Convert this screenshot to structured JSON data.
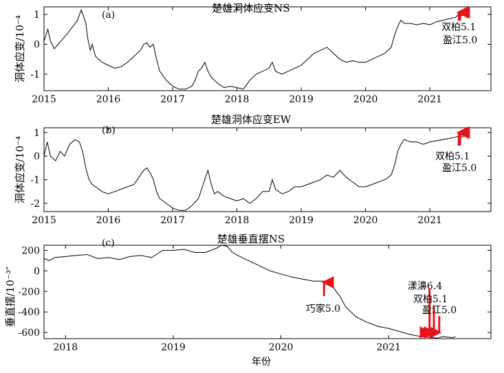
{
  "xlabel_bottom": "年份",
  "colors": {
    "line": "#000000",
    "arrow": "#e8141b"
  },
  "chart_data": [
    {
      "type": "line",
      "panel_letter": "(a)",
      "title": "楚雄洞体应变NS",
      "ylabel": "洞体应变/10⁻⁴",
      "xlim": [
        2015.0,
        2021.95
      ],
      "ylim": [
        -1.55,
        1.25
      ],
      "xticks": [
        2015,
        2016,
        2017,
        2018,
        2019,
        2020,
        2021
      ],
      "yticks": [
        -1,
        0,
        1
      ],
      "grid": false,
      "series": [
        {
          "x": [
            2015.0,
            2015.06,
            2015.1,
            2015.16,
            2015.22,
            2015.3,
            2015.38,
            2015.45,
            2015.52,
            2015.58,
            2015.62,
            2015.65,
            2015.68,
            2015.72,
            2015.75,
            2015.8,
            2015.9,
            2016.0,
            2016.1,
            2016.2,
            2016.3,
            2016.4,
            2016.5,
            2016.55,
            2016.6,
            2016.65,
            2016.7,
            2016.75,
            2016.8,
            2016.9,
            2017.0,
            2017.1,
            2017.2,
            2017.3,
            2017.35,
            2017.4,
            2017.45,
            2017.5,
            2017.55,
            2017.6,
            2017.65,
            2017.7,
            2017.8,
            2017.9,
            2018.0,
            2018.1,
            2018.2,
            2018.3,
            2018.4,
            2018.5,
            2018.55,
            2018.6,
            2018.7,
            2018.8,
            2018.9,
            2019.0,
            2019.1,
            2019.2,
            2019.3,
            2019.4,
            2019.5,
            2019.6,
            2019.7,
            2019.8,
            2019.9,
            2020.0,
            2020.1,
            2020.2,
            2020.3,
            2020.4,
            2020.45,
            2020.5,
            2020.55,
            2020.6,
            2020.7,
            2020.8,
            2020.9,
            2021.0,
            2021.1,
            2021.2,
            2021.3,
            2021.4,
            2021.45,
            2021.5,
            2021.55,
            2021.58
          ],
          "y": [
            0.1,
            0.5,
            0.1,
            -0.15,
            0.0,
            0.2,
            0.4,
            0.6,
            0.8,
            1.15,
            0.9,
            0.7,
            0.2,
            -0.2,
            0.0,
            -0.4,
            -0.6,
            -0.7,
            -0.8,
            -0.75,
            -0.6,
            -0.4,
            -0.2,
            0.0,
            0.05,
            -0.1,
            0.0,
            -0.5,
            -0.9,
            -1.2,
            -1.4,
            -1.5,
            -1.5,
            -1.4,
            -1.2,
            -0.9,
            -0.8,
            -0.6,
            -0.9,
            -1.1,
            -1.2,
            -1.3,
            -1.45,
            -1.4,
            -1.45,
            -1.5,
            -1.2,
            -1.0,
            -0.9,
            -0.8,
            -0.6,
            -0.9,
            -1.0,
            -0.9,
            -0.8,
            -0.7,
            -0.5,
            -0.3,
            -0.2,
            -0.1,
            -0.3,
            -0.5,
            -0.6,
            -0.55,
            -0.6,
            -0.6,
            -0.5,
            -0.4,
            -0.3,
            -0.1,
            0.3,
            0.6,
            0.8,
            0.7,
            0.7,
            0.65,
            0.7,
            0.65,
            0.75,
            0.8,
            0.85,
            0.9,
            1.0,
            0.95,
            1.1,
            1.2
          ]
        }
      ],
      "annotations": [
        {
          "text": "双柏5.1",
          "x": 2021.45
        },
        {
          "text": "盈江5.0",
          "x": 2021.47
        }
      ]
    },
    {
      "type": "line",
      "panel_letter": "(b)",
      "title": "楚雄洞体应变EW",
      "ylabel": "洞体应变/10⁻⁴",
      "xlim": [
        2015.0,
        2021.95
      ],
      "ylim": [
        -2.35,
        1.2
      ],
      "xticks": [
        2015,
        2016,
        2017,
        2018,
        2019,
        2020,
        2021
      ],
      "yticks": [
        -2,
        -1,
        0,
        1
      ],
      "grid": false,
      "series": [
        {
          "x": [
            2015.0,
            2015.05,
            2015.1,
            2015.18,
            2015.25,
            2015.32,
            2015.4,
            2015.48,
            2015.55,
            2015.6,
            2015.65,
            2015.7,
            2015.75,
            2015.8,
            2015.9,
            2016.0,
            2016.1,
            2016.2,
            2016.3,
            2016.4,
            2016.5,
            2016.55,
            2016.6,
            2016.65,
            2016.7,
            2016.75,
            2016.8,
            2016.9,
            2017.0,
            2017.1,
            2017.2,
            2017.3,
            2017.4,
            2017.5,
            2017.55,
            2017.6,
            2017.65,
            2017.7,
            2017.8,
            2017.9,
            2018.0,
            2018.1,
            2018.2,
            2018.3,
            2018.4,
            2018.5,
            2018.55,
            2018.6,
            2018.7,
            2018.8,
            2018.9,
            2019.0,
            2019.1,
            2019.2,
            2019.3,
            2019.4,
            2019.5,
            2019.6,
            2019.7,
            2019.8,
            2019.9,
            2020.0,
            2020.1,
            2020.2,
            2020.3,
            2020.4,
            2020.45,
            2020.5,
            2020.55,
            2020.6,
            2020.7,
            2020.8,
            2020.9,
            2021.0,
            2021.1,
            2021.2,
            2021.3,
            2021.4,
            2021.45,
            2021.5,
            2021.55,
            2021.58
          ],
          "y": [
            0.0,
            0.6,
            0.0,
            -0.2,
            0.2,
            0.0,
            0.5,
            0.7,
            0.6,
            0.2,
            -0.5,
            -1.0,
            -1.2,
            -1.3,
            -1.5,
            -1.6,
            -1.5,
            -1.4,
            -1.3,
            -1.2,
            -0.8,
            -0.6,
            -0.5,
            -0.7,
            -1.0,
            -1.5,
            -1.8,
            -2.0,
            -2.2,
            -2.3,
            -2.3,
            -2.1,
            -1.8,
            -1.0,
            -0.6,
            -1.2,
            -1.6,
            -1.5,
            -1.7,
            -1.8,
            -1.9,
            -1.8,
            -2.0,
            -1.8,
            -1.5,
            -1.5,
            -1.0,
            -1.4,
            -1.6,
            -1.5,
            -1.3,
            -1.3,
            -1.2,
            -1.1,
            -1.0,
            -0.8,
            -0.9,
            -0.6,
            -0.9,
            -1.1,
            -1.3,
            -1.3,
            -1.2,
            -1.1,
            -1.0,
            -0.8,
            -0.4,
            0.2,
            0.5,
            0.7,
            0.6,
            0.6,
            0.5,
            0.6,
            0.65,
            0.7,
            0.75,
            0.8,
            0.85,
            0.8,
            0.9,
            1.0
          ]
        }
      ],
      "annotations": [
        {
          "text": "双柏5.1",
          "x": 2021.45
        },
        {
          "text": "盈江5.0",
          "x": 2021.47
        }
      ]
    },
    {
      "type": "line",
      "panel_letter": "(c)",
      "title": "楚雄垂直摆NS",
      "ylabel": "垂直摆/10⁻³″",
      "xlim": [
        2017.8,
        2021.95
      ],
      "ylim": [
        -660,
        250
      ],
      "xticks": [
        2018,
        2019,
        2020,
        2021
      ],
      "yticks": [
        -600,
        -400,
        -200,
        0,
        200
      ],
      "grid": false,
      "series": [
        {
          "x": [
            2017.8,
            2017.85,
            2017.9,
            2018.0,
            2018.1,
            2018.2,
            2018.3,
            2018.4,
            2018.5,
            2018.6,
            2018.7,
            2018.8,
            2018.9,
            2019.0,
            2019.1,
            2019.2,
            2019.3,
            2019.4,
            2019.45,
            2019.5,
            2019.55,
            2019.6,
            2019.7,
            2019.8,
            2019.9,
            2020.0,
            2020.1,
            2020.2,
            2020.3,
            2020.4,
            2020.45,
            2020.5,
            2020.55,
            2020.6,
            2020.7,
            2020.8,
            2020.9,
            2021.0,
            2021.1,
            2021.2,
            2021.3,
            2021.4,
            2021.45,
            2021.5,
            2021.55,
            2021.6,
            2021.62
          ],
          "y": [
            120,
            100,
            130,
            140,
            150,
            160,
            120,
            130,
            110,
            140,
            150,
            130,
            200,
            200,
            210,
            180,
            180,
            220,
            250,
            240,
            180,
            150,
            100,
            50,
            0,
            -30,
            -60,
            -80,
            -100,
            -100,
            -90,
            -180,
            -250,
            -350,
            -450,
            -500,
            -540,
            -560,
            -590,
            -620,
            -640,
            -650,
            -655,
            -640,
            -645,
            -650,
            -640
          ]
        }
      ],
      "annotations": [
        {
          "text": "巧家5.0",
          "x": 2020.4
        },
        {
          "text": "漾濞6.4",
          "x": 2021.38
        },
        {
          "text": "双柏5.1",
          "x": 2021.42
        },
        {
          "text": "盈江5.0",
          "x": 2021.47
        }
      ]
    }
  ]
}
